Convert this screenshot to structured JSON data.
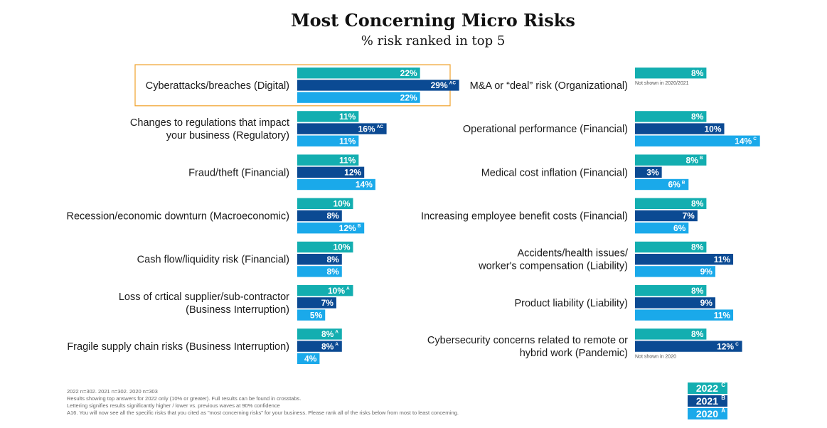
{
  "title": "Most Concerning Micro Risks",
  "subtitle": "% risk ranked in top 5",
  "colors": {
    "2022": "#13aeb0",
    "2021": "#0b4a93",
    "2020": "#1aa9ea",
    "highlight": "#f0a22c"
  },
  "legend": [
    {
      "year": "2022",
      "letter": "C"
    },
    {
      "year": "2021",
      "letter": "B"
    },
    {
      "year": "2020",
      "letter": "A"
    }
  ],
  "footnotes": [
    "2022 n=302. 2021 n=302. 2020 n=303",
    "Results showing top answers for 2022 only (10% or greater). Full results can be found in crosstabs.",
    "Lettering signifies results significantly higher / lower vs. previous waves at 90% confidence",
    "A16. You will now see all the specific risks that you cited as \"most concerning risks\" for your business. Please rank all of the risks below from most to least concerning."
  ],
  "chart_data": {
    "type": "bar",
    "title": "Most Concerning Micro Risks",
    "subtitle": "% risk ranked in top 5",
    "orientation": "horizontal",
    "series_names": [
      "2022",
      "2021",
      "2020"
    ],
    "panels": [
      {
        "side": "left",
        "categories": [
          {
            "label": [
              "Cyberattacks/breaches (Digital)"
            ],
            "highlight": true,
            "bars": [
              {
                "year": "2022",
                "value": 22,
                "sig": ""
              },
              {
                "year": "2021",
                "value": 29,
                "sig": "AC"
              },
              {
                "year": "2020",
                "value": 22,
                "sig": ""
              }
            ]
          },
          {
            "label": [
              "Changes to regulations that impact",
              "your business (Regulatory)"
            ],
            "bars": [
              {
                "year": "2022",
                "value": 11,
                "sig": ""
              },
              {
                "year": "2021",
                "value": 16,
                "sig": "AC"
              },
              {
                "year": "2020",
                "value": 11,
                "sig": ""
              }
            ]
          },
          {
            "label": [
              "Fraud/theft (Financial)"
            ],
            "bars": [
              {
                "year": "2022",
                "value": 11,
                "sig": ""
              },
              {
                "year": "2021",
                "value": 12,
                "sig": ""
              },
              {
                "year": "2020",
                "value": 14,
                "sig": ""
              }
            ]
          },
          {
            "label": [
              "Recession/economic downturn (Macroeconomic)"
            ],
            "bars": [
              {
                "year": "2022",
                "value": 10,
                "sig": ""
              },
              {
                "year": "2021",
                "value": 8,
                "sig": ""
              },
              {
                "year": "2020",
                "value": 12,
                "sig": "B"
              }
            ]
          },
          {
            "label": [
              "Cash flow/liquidity risk (Financial)"
            ],
            "bars": [
              {
                "year": "2022",
                "value": 10,
                "sig": ""
              },
              {
                "year": "2021",
                "value": 8,
                "sig": ""
              },
              {
                "year": "2020",
                "value": 8,
                "sig": ""
              }
            ]
          },
          {
            "label": [
              "Loss of crtical supplier/sub-contractor",
              "(Business Interruption)"
            ],
            "bars": [
              {
                "year": "2022",
                "value": 10,
                "sig": "A"
              },
              {
                "year": "2021",
                "value": 7,
                "sig": ""
              },
              {
                "year": "2020",
                "value": 5,
                "sig": ""
              }
            ]
          },
          {
            "label": [
              "Fragile supply chain risks (Business Interruption)"
            ],
            "bars": [
              {
                "year": "2022",
                "value": 8,
                "sig": "A"
              },
              {
                "year": "2021",
                "value": 8,
                "sig": "A"
              },
              {
                "year": "2020",
                "value": 4,
                "sig": ""
              }
            ]
          }
        ]
      },
      {
        "side": "right",
        "categories": [
          {
            "label": [
              "M&A or “deal” risk (Organizational)"
            ],
            "note": "Not shown in 2020/2021",
            "bars": [
              {
                "year": "2022",
                "value": 8,
                "sig": ""
              }
            ]
          },
          {
            "label": [
              "Operational performance (Financial)"
            ],
            "bars": [
              {
                "year": "2022",
                "value": 8,
                "sig": ""
              },
              {
                "year": "2021",
                "value": 10,
                "sig": ""
              },
              {
                "year": "2020",
                "value": 14,
                "sig": "C"
              }
            ]
          },
          {
            "label": [
              "Medical cost inflation (Financial)"
            ],
            "bars": [
              {
                "year": "2022",
                "value": 8,
                "sig": "B"
              },
              {
                "year": "2021",
                "value": 3,
                "sig": ""
              },
              {
                "year": "2020",
                "value": 6,
                "sig": "B"
              }
            ]
          },
          {
            "label": [
              "Increasing employee benefit costs (Financial)"
            ],
            "bars": [
              {
                "year": "2022",
                "value": 8,
                "sig": ""
              },
              {
                "year": "2021",
                "value": 7,
                "sig": ""
              },
              {
                "year": "2020",
                "value": 6,
                "sig": ""
              }
            ]
          },
          {
            "label": [
              "Accidents/health issues/",
              "worker's compensation (Liability)"
            ],
            "bars": [
              {
                "year": "2022",
                "value": 8,
                "sig": ""
              },
              {
                "year": "2021",
                "value": 11,
                "sig": ""
              },
              {
                "year": "2020",
                "value": 9,
                "sig": ""
              }
            ]
          },
          {
            "label": [
              "Product liability (Liability)"
            ],
            "bars": [
              {
                "year": "2022",
                "value": 8,
                "sig": ""
              },
              {
                "year": "2021",
                "value": 9,
                "sig": ""
              },
              {
                "year": "2020",
                "value": 11,
                "sig": ""
              }
            ]
          },
          {
            "label": [
              "Cybersecurity concerns related to remote or",
              "hybrid work (Pandemic)"
            ],
            "note": "Not shown in 2020",
            "bars": [
              {
                "year": "2022",
                "value": 8,
                "sig": ""
              },
              {
                "year": "2021",
                "value": 12,
                "sig": "C"
              }
            ]
          }
        ]
      }
    ]
  }
}
